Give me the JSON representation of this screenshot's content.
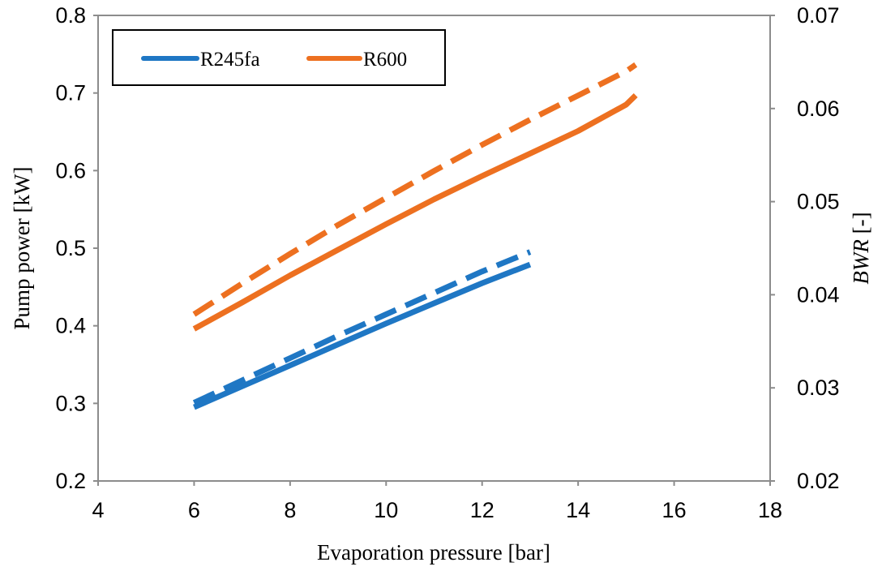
{
  "chart_data": {
    "type": "line",
    "x_axis": {
      "label": "Evaporation pressure [bar]",
      "range": [
        4,
        18
      ],
      "ticks": [
        4,
        6,
        8,
        10,
        12,
        14,
        16,
        18
      ]
    },
    "y_axis_left": {
      "label": "Pump power [kW]",
      "range": [
        0.2,
        0.8
      ],
      "ticks": [
        "0.2",
        "0.3",
        "0.4",
        "0.5",
        "0.6",
        "0.7",
        "0.8"
      ]
    },
    "y_axis_right": {
      "label_italic": "BWR",
      "label_rest": " [-]",
      "range": [
        0.02,
        0.07
      ],
      "ticks": [
        "0.02",
        "0.03",
        "0.04",
        "0.05",
        "0.06",
        "0.07"
      ]
    },
    "grid": false,
    "legend": {
      "placement": "top-left",
      "entries": [
        {
          "label": "R245fa",
          "color": "#1f77c4"
        },
        {
          "label": "R600",
          "color": "#ed7020"
        }
      ]
    },
    "series": [
      {
        "name": "R245fa",
        "axis": "left",
        "style": "solid",
        "color": "#1f77c4",
        "x": [
          6,
          7,
          8,
          9,
          10,
          11,
          12,
          13
        ],
        "y": [
          0.295,
          0.322,
          0.349,
          0.376,
          0.403,
          0.429,
          0.455,
          0.479
        ]
      },
      {
        "name": "R245fa",
        "axis": "right",
        "style": "dashed",
        "color": "#1f77c4",
        "x": [
          6,
          7,
          8,
          9,
          10,
          11,
          12,
          13
        ],
        "y": [
          0.0284,
          0.0308,
          0.0332,
          0.0356,
          0.0379,
          0.0402,
          0.0425,
          0.0446
        ]
      },
      {
        "name": "R600",
        "axis": "left",
        "style": "solid",
        "color": "#ed7020",
        "x": [
          6,
          7,
          8,
          9,
          10,
          11,
          12,
          13,
          14,
          15,
          15.2
        ],
        "y": [
          0.396,
          0.43,
          0.465,
          0.498,
          0.531,
          0.563,
          0.593,
          0.622,
          0.651,
          0.685,
          0.697
        ]
      },
      {
        "name": "R600",
        "axis": "right",
        "style": "dashed",
        "color": "#ed7020",
        "x": [
          6,
          7,
          8,
          9,
          10,
          11,
          12,
          13,
          14,
          15,
          15.2
        ],
        "y": [
          0.0379,
          0.0412,
          0.0444,
          0.0475,
          0.0504,
          0.0533,
          0.0561,
          0.0588,
          0.0614,
          0.064,
          0.0647
        ]
      }
    ]
  }
}
